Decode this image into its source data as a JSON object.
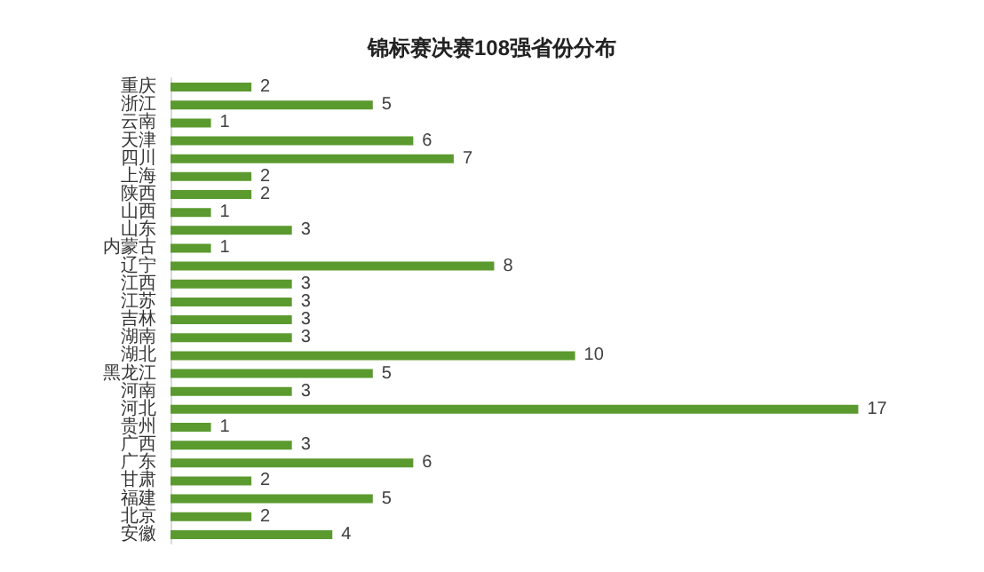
{
  "chart_data": {
    "type": "bar",
    "orientation": "horizontal",
    "title": "锦标赛决赛108强省份分布",
    "categories": [
      "重庆",
      "浙江",
      "云南",
      "天津",
      "四川",
      "上海",
      "陕西",
      "山西",
      "山东",
      "内蒙古",
      "辽宁",
      "江西",
      "江苏",
      "吉林",
      "湖南",
      "湖北",
      "黑龙江",
      "河南",
      "河北",
      "贵州",
      "广西",
      "广东",
      "甘肃",
      "福建",
      "北京",
      "安徽"
    ],
    "values": [
      2,
      5,
      1,
      6,
      7,
      2,
      2,
      1,
      3,
      1,
      8,
      3,
      3,
      3,
      3,
      10,
      5,
      3,
      17,
      1,
      3,
      6,
      2,
      5,
      2,
      4
    ],
    "color": "#5b9a2f",
    "data_labels": true,
    "grid": false,
    "tick_labels": "y"
  }
}
